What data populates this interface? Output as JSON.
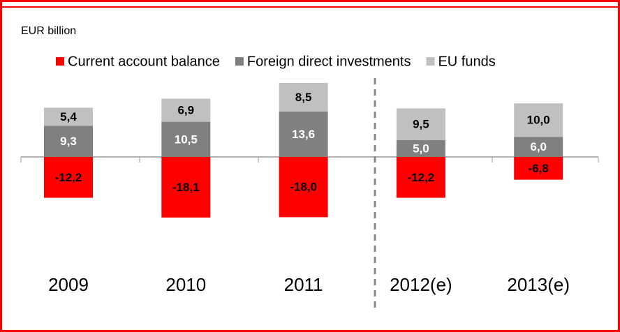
{
  "chart_data": {
    "type": "stacked_bar",
    "subtitle": "EUR billion",
    "categories": [
      "2009",
      "2010",
      "2011",
      "2012(e)",
      "2013(e)"
    ],
    "series": [
      {
        "name": "Current account balance",
        "color": "#ff0000",
        "values": [
          -12.2,
          -18.1,
          -18.0,
          -12.2,
          -6.8
        ],
        "value_labels": [
          "-12,2",
          "-18,1",
          "-18,0",
          "-12,2",
          "-6,8"
        ]
      },
      {
        "name": "Foreign direct investments",
        "color": "#808080",
        "values": [
          9.3,
          10.5,
          13.6,
          5.0,
          6.0
        ],
        "value_labels": [
          "9,3",
          "10,5",
          "13,6",
          "5,0",
          "6,0"
        ]
      },
      {
        "name": "EU funds",
        "color": "#c0c0c0",
        "values": [
          5.4,
          6.9,
          8.5,
          9.5,
          10.0
        ],
        "value_labels": [
          "5,4",
          "6,9",
          "8,5",
          "9,5",
          "10,0"
        ]
      }
    ]
  }
}
